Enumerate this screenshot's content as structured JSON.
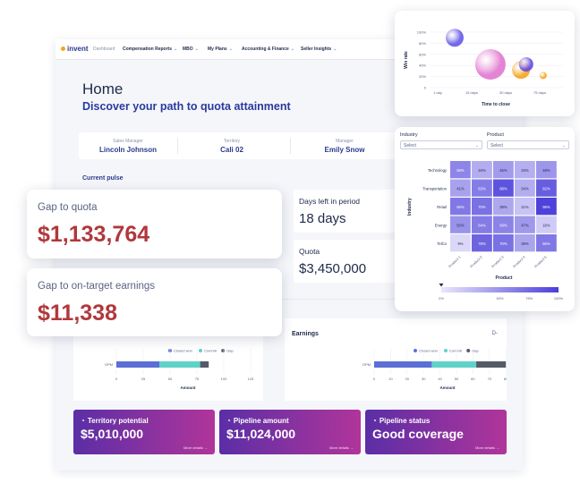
{
  "nav": {
    "logo": "invent",
    "items": [
      {
        "label": "Dashboard",
        "chevron": false
      },
      {
        "label": "Compensation Reports",
        "chevron": true
      },
      {
        "label": "MBO",
        "chevron": true
      },
      {
        "label": "My Plans",
        "chevron": true
      },
      {
        "label": "Accounting & Finance",
        "chevron": true
      },
      {
        "label": "Seller Insights",
        "chevron": true
      }
    ]
  },
  "header": {
    "title": "Home",
    "subtitle": "Discover your path to quota attainment"
  },
  "info": [
    {
      "label": "Sales Manager",
      "value": "Lincoln Johnson"
    },
    {
      "label": "Territory",
      "value": "Cali 02"
    },
    {
      "label": "Manager",
      "value": "Emily Snow"
    }
  ],
  "pulse_label": "Current pulse",
  "kpis": {
    "gap_quota": {
      "label": "Gap to quota",
      "value": "$1,133,764"
    },
    "gap_ote": {
      "label": "Gap to on-target earnings",
      "value": "$11,338"
    },
    "days_left": {
      "label": "Days left in period",
      "value": "18 days"
    },
    "quota": {
      "label": "Quota",
      "value": "$3,450,000"
    }
  },
  "colors": {
    "closed_won": "#5b6fd6",
    "commit": "#5fd3c8",
    "gap": "#555b66",
    "value_red": "#b0383c",
    "heat_low": "#e9e6fb",
    "heat_high": "#4b3fd9"
  },
  "chart_data": [
    {
      "type": "bar",
      "orientation": "horizontal",
      "stacked": true,
      "categories": [
        "OPM"
      ],
      "series": [
        {
          "name": "Closed won",
          "values": [
            40
          ]
        },
        {
          "name": "Commit",
          "values": [
            38
          ]
        },
        {
          "name": "Gap",
          "values": [
            8
          ]
        }
      ],
      "xlabel": "Amount",
      "xticks": [
        "0",
        "25",
        "50",
        "75",
        "100",
        "125",
        "150"
      ],
      "xlim": [
        0,
        150
      ],
      "legend": "top"
    },
    {
      "type": "bar",
      "orientation": "horizontal",
      "stacked": true,
      "title": "Earnings",
      "categories": [
        "OPM"
      ],
      "series": [
        {
          "name": "Closed won",
          "values": [
            35
          ]
        },
        {
          "name": "Commit",
          "values": [
            27
          ]
        },
        {
          "name": "Gap",
          "values": [
            18
          ]
        }
      ],
      "xlabel": "Amount",
      "xticks": [
        "0",
        "10",
        "20",
        "30",
        "40",
        "50",
        "60",
        "70",
        "80",
        "90",
        "100"
      ],
      "xlim": [
        0,
        100
      ],
      "legend": "top"
    },
    {
      "type": "scatter",
      "subtype": "bubble",
      "xlabel": "Time to close",
      "ylabel": "Win rate",
      "xticks": [
        "1 day",
        "15 days",
        "30 days",
        "75 days"
      ],
      "yticks": [
        "0",
        "20%",
        "40%",
        "60%",
        "80%",
        "100%"
      ],
      "ylim": [
        0,
        100
      ],
      "points": [
        {
          "x": 0.5,
          "y": 90,
          "r": 10,
          "color": "#6a5ce8"
        },
        {
          "x": 1.55,
          "y": 42,
          "r": 17,
          "color": "#e27ad0"
        },
        {
          "x": 2.45,
          "y": 32,
          "r": 10,
          "color": "#f5a623"
        },
        {
          "x": 2.6,
          "y": 42,
          "r": 8,
          "color": "#6a4ee0"
        },
        {
          "x": 3.1,
          "y": 22,
          "r": 4,
          "color": "#f5a623"
        }
      ],
      "grid": true
    },
    {
      "type": "heatmap",
      "rows": [
        "Technology",
        "Transportation",
        "Retail",
        "Energy",
        "TelCo"
      ],
      "cols": [
        "Product 1",
        "Product 2",
        "Product 3",
        "Product 4",
        "Product 5"
      ],
      "values": [
        [
          58,
          34,
          45,
          33,
          48
        ],
        [
          41,
          63,
          88,
          34,
          82
        ],
        [
          66,
          70,
          38,
          21,
          98
        ],
        [
          50,
          64,
          59,
          47,
          16
        ],
        [
          9,
          78,
          70,
          39,
          66
        ]
      ],
      "xlabel": "Product",
      "ylabel": "Industry",
      "colorbar_ticks": [
        "0%",
        "50%",
        "75%",
        "100%"
      ],
      "colorbar_marker": 0
    }
  ],
  "earnings_menu": "D-",
  "cards": [
    {
      "title": "Territory potential",
      "value": "$5,010,000",
      "link": "More details"
    },
    {
      "title": "Pipeline amount",
      "value": "$11,024,000",
      "link": "More details"
    },
    {
      "title": "Pipeline status",
      "value": "Good coverage",
      "link": "More details"
    }
  ],
  "filters": {
    "industry": {
      "label": "Industry",
      "value": "Select"
    },
    "product": {
      "label": "Product",
      "value": "Select"
    }
  }
}
